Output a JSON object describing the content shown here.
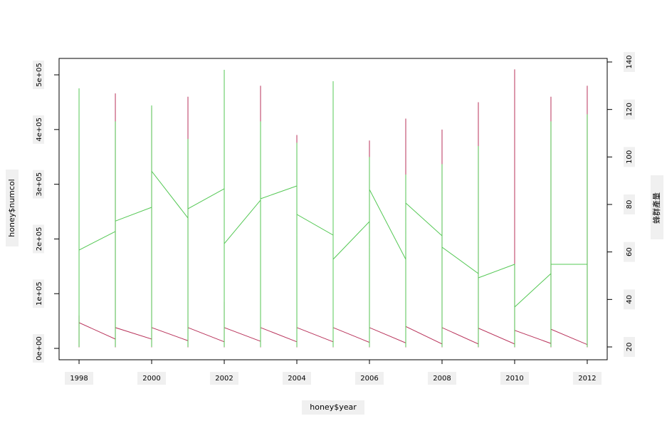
{
  "chart_data": {
    "type": "line",
    "xlabel": "honey$year",
    "ylabel": "honey$numcol",
    "y2label": "蜂群產量",
    "x": [
      1998,
      1998,
      1998,
      1999,
      1999,
      1999,
      1999,
      2000,
      2000,
      2000,
      2000,
      2001,
      2001,
      2001,
      2001,
      2002,
      2002,
      2002,
      2002,
      2003,
      2003,
      2003,
      2003,
      2004,
      2004,
      2004,
      2004,
      2005,
      2005,
      2005,
      2005,
      2006,
      2006,
      2006,
      2006,
      2007,
      2007,
      2007,
      2007,
      2008,
      2008,
      2008,
      2008,
      2009,
      2009,
      2009,
      2009,
      2010,
      2010,
      2010,
      2010,
      2011,
      2011,
      2011,
      2011,
      2012,
      2012,
      2012
    ],
    "series": [
      {
        "name": "numcol",
        "color": "#b8325a",
        "axis": "y",
        "values": [
          60000,
          2000,
          47000,
          17000,
          466000,
          2000,
          38000,
          17000,
          440000,
          2000,
          38000,
          14000,
          460000,
          2000,
          38000,
          12000,
          85000,
          2000,
          38000,
          13000,
          480000,
          2000,
          38000,
          12000,
          390000,
          2000,
          38000,
          12000,
          400000,
          2000,
          38000,
          11000,
          380000,
          2000,
          38000,
          10000,
          420000,
          2000,
          40000,
          8000,
          400000,
          2000,
          38000,
          8000,
          450000,
          2000,
          37000,
          8000,
          510000,
          2000,
          33000,
          9000,
          460000,
          2000,
          35000,
          7000,
          480000,
          2000
        ]
      },
      {
        "name": "蜂群產量",
        "color": "#55c855",
        "axis": "y2",
        "values": [
          128.9,
          20,
          60.8,
          68.6,
          115,
          20,
          73,
          78.8,
          121.7,
          20,
          94,
          74.3,
          107.6,
          20,
          78.2,
          86.6,
          136.7,
          20,
          63.5,
          81.8,
          115,
          20,
          82.4,
          87.8,
          106,
          20,
          75.8,
          67.1,
          131.9,
          20,
          56.9,
          72.8,
          100,
          20,
          86.3,
          56.9,
          92.6,
          20,
          80.6,
          66.8,
          97,
          20,
          62,
          50.9,
          104.6,
          20,
          49.1,
          54.8,
          37,
          20,
          36.8,
          50.9,
          115,
          20,
          54.8,
          54.8,
          118,
          20
        ]
      }
    ],
    "xlim": [
      1997.45,
      2012.55
    ],
    "xticks": [
      1998,
      2000,
      2002,
      2004,
      2006,
      2008,
      2010,
      2012
    ],
    "ylim": [
      -20800,
      530000
    ],
    "yticks": [
      {
        "value": 0,
        "label": "0e+00"
      },
      {
        "value": 100000,
        "label": "1e+05"
      },
      {
        "value": 200000,
        "label": "2e+05"
      },
      {
        "value": 300000,
        "label": "3e+05"
      },
      {
        "value": 400000,
        "label": "4e+05"
      },
      {
        "value": 500000,
        "label": "5e+05"
      }
    ],
    "y2lim": [
      14.6,
      141.5
    ],
    "y2ticks": [
      20,
      40,
      60,
      80,
      100,
      120,
      140
    ],
    "grid": false
  }
}
